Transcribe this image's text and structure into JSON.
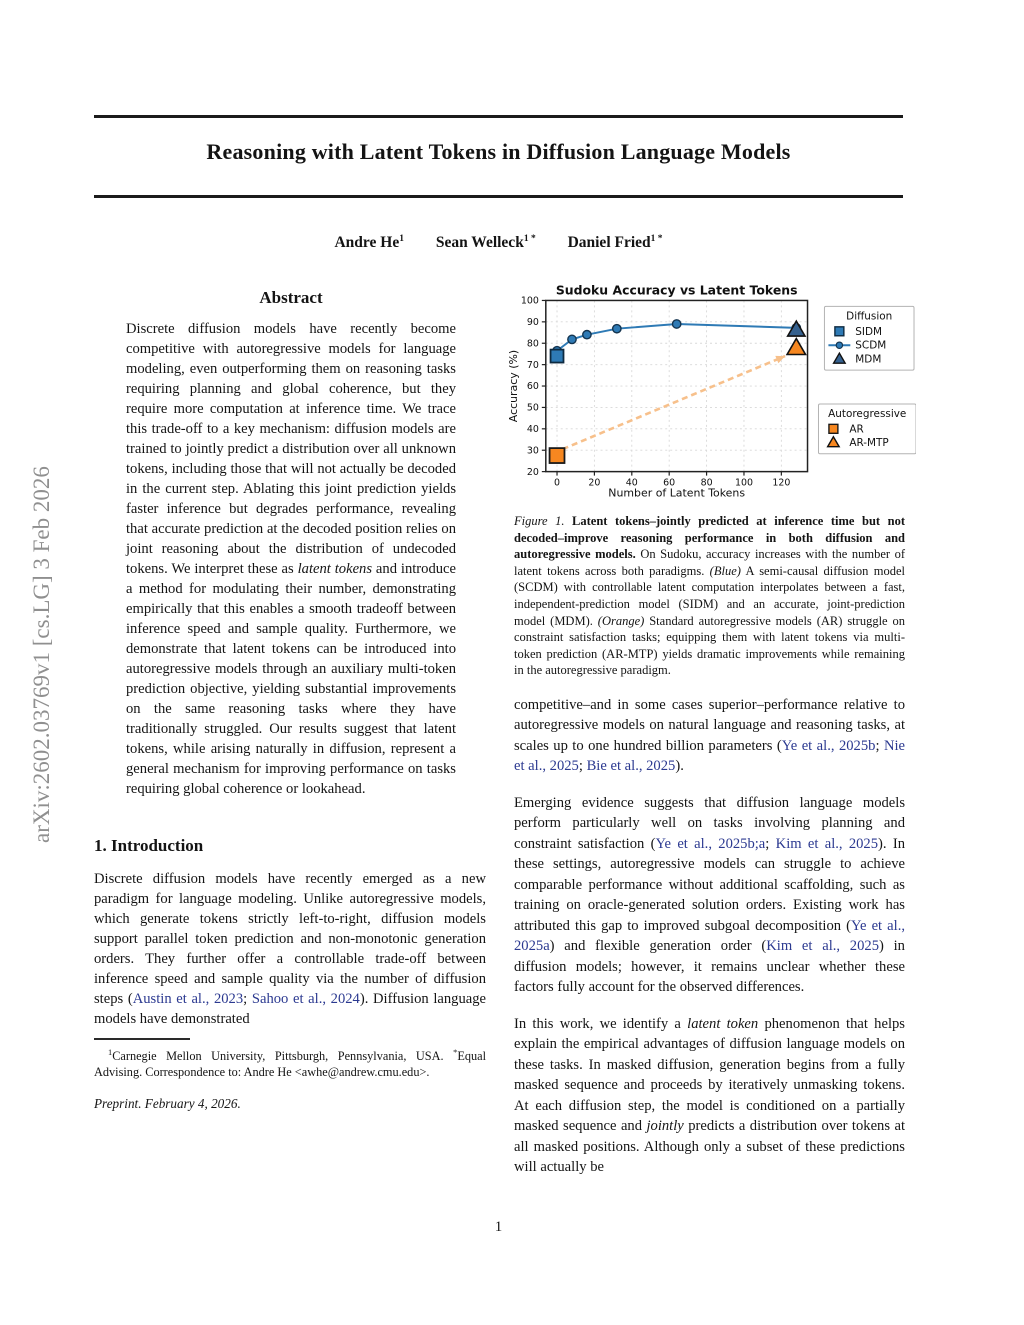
{
  "sidebar": {
    "arxiv_label": "arXiv:2602.03769v1  [cs.LG]  3 Feb 2026"
  },
  "header": {
    "title": "Reasoning with Latent Tokens in Diffusion Language Models",
    "authors": [
      {
        "name": "Andre He",
        "sup": "1"
      },
      {
        "name": "Sean Welleck",
        "sup": "1 *"
      },
      {
        "name": "Daniel Fried",
        "sup": "1 *"
      }
    ]
  },
  "abstract": {
    "heading": "Abstract",
    "text": [
      {
        "t": "Discrete diffusion models have recently become competitive with autoregressive models for language modeling, even outperforming them on reasoning tasks requiring planning and global coherence, but they require more computation at inference time. We trace this trade-off to a key mechanism: diffusion models are trained to jointly predict a distribution over all unknown tokens, including those that will not actually be decoded in the current step. Ablating this joint prediction yields faster inference but degrades performance, revealing that accurate prediction at the decoded position relies on joint reasoning about the distribution of undecoded tokens. We interpret these as "
      },
      {
        "t": "latent tokens",
        "s": "i"
      },
      {
        "t": " and introduce a method for modulating their number, demonstrating empirically that this enables a smooth tradeoff between inference speed and sample quality. Furthermore, we demonstrate that latent tokens can be introduced into autoregressive models through an auxiliary multi-token prediction objective, yielding substantial improvements on the same reasoning tasks where they have traditionally struggled. Our results suggest that latent tokens, while arising naturally in diffusion, represent a general mechanism for improving performance on tasks requiring global coherence or lookahead."
      }
    ]
  },
  "introduction": {
    "heading": "1. Introduction",
    "p1": [
      {
        "t": "Discrete diffusion models have recently emerged as a new paradigm for language modeling.  Unlike autoregressive models, which generate tokens strictly left-to-right, diffusion models support parallel token prediction and non-monotonic generation orders. They further offer a controllable trade-off between inference speed and sample quality via the number of diffusion steps ("
      },
      {
        "t": "Austin et al., 2023",
        "s": "c"
      },
      {
        "t": "; "
      },
      {
        "t": "Sahoo et al., 2024",
        "s": "c"
      },
      {
        "t": "). Diffusion language models have demonstrated"
      }
    ]
  },
  "footnote": {
    "text": [
      {
        "t": "1",
        "s": "sup"
      },
      {
        "t": "Carnegie Mellon University, Pittsburgh, Pennsylvania, USA. "
      },
      {
        "t": "*",
        "s": "sup"
      },
      {
        "t": "Equal Advising.  Correspondence to: Andre He <awhe@andrew.cmu.edu>."
      }
    ],
    "preprint": "Preprint. February 4, 2026."
  },
  "figure": {
    "caption": [
      {
        "t": "Figure 1.",
        "s": "i"
      },
      {
        "t": " Latent tokens–jointly predicted at inference time but not decoded–improve reasoning performance in both diffusion and autoregressive models.",
        "s": "b"
      },
      {
        "t": " On Sudoku, accuracy increases with the number of latent tokens across both paradigms. "
      },
      {
        "t": "(Blue)",
        "s": "i"
      },
      {
        "t": " A semi-causal diffusion model (SCDM) with controllable latent computation interpolates between a fast, independent-prediction model (SIDM) and an accurate, joint-prediction model (MDM). "
      },
      {
        "t": "(Orange)",
        "s": "i"
      },
      {
        "t": " Standard autoregressive models (AR) struggle on constraint satisfaction tasks; equipping them with latent tokens via multi-token prediction (AR-MTP) yields dramatic improvements while remaining in the autoregressive paradigm."
      }
    ]
  },
  "right_column": {
    "p1": [
      {
        "t": "competitive–and in some cases superior–performance relative to autoregressive models on natural language and reasoning tasks, at scales up to one hundred billion parameters ("
      },
      {
        "t": "Ye et al., 2025b",
        "s": "c"
      },
      {
        "t": "; "
      },
      {
        "t": "Nie et al., 2025",
        "s": "c"
      },
      {
        "t": "; "
      },
      {
        "t": "Bie et al., 2025",
        "s": "c"
      },
      {
        "t": ")."
      }
    ],
    "p2": [
      {
        "t": "Emerging evidence suggests that diffusion language models perform particularly well on tasks involving planning and constraint satisfaction ("
      },
      {
        "t": "Ye et al., 2025b;a",
        "s": "c"
      },
      {
        "t": "; "
      },
      {
        "t": "Kim et al., 2025",
        "s": "c"
      },
      {
        "t": "). In these settings, autoregressive models can struggle to achieve comparable performance without additional scaffolding, such as training on oracle-generated solution orders. Existing work has attributed this gap to improved subgoal decomposition ("
      },
      {
        "t": "Ye et al., 2025a",
        "s": "c"
      },
      {
        "t": ") and flexible generation order ("
      },
      {
        "t": "Kim et al., 2025",
        "s": "c"
      },
      {
        "t": ") in diffusion models; however, it remains unclear whether these factors fully account for the observed differences."
      }
    ],
    "p3": [
      {
        "t": "In this work, we identify a "
      },
      {
        "t": "latent token",
        "s": "i"
      },
      {
        "t": " phenomenon that helps explain the empirical advantages of diffusion language models on these tasks. In masked diffusion, generation begins from a fully masked sequence and proceeds by iteratively unmasking tokens. At each diffusion step, the model is conditioned on a partially masked sequence and "
      },
      {
        "t": "jointly",
        "s": "i"
      },
      {
        "t": " predicts a distribution over tokens at all masked positions. Although only a subset of these predictions will actually be"
      }
    ]
  },
  "page": {
    "page_number": "1"
  },
  "colors": {
    "blue": "#2e7ab5",
    "blue_edge": "#14344f",
    "navy_triangle": "#35618f",
    "orange": "#f68720",
    "arrow_orange": "#f7c08b",
    "cite_blue": "#2b3990",
    "grid_gray": "#d8d8d8"
  },
  "chart_data": {
    "type": "line",
    "title": "Sudoku Accuracy vs Latent Tokens",
    "xlabel": "Number of Latent Tokens",
    "ylabel": "Accuracy (%)",
    "xlim": [
      -6,
      134
    ],
    "ylim": [
      20,
      100
    ],
    "x_ticks": [
      0,
      20,
      40,
      60,
      80,
      100,
      120
    ],
    "y_ticks": [
      20,
      30,
      40,
      50,
      60,
      70,
      80,
      90,
      100
    ],
    "grid": true,
    "series": [
      {
        "name": "SCDM",
        "type": "line-circle",
        "color": "#2e7ab5",
        "edge": "#14344f",
        "points": [
          [
            0,
            76.5
          ],
          [
            8,
            81.8
          ],
          [
            16,
            84.0
          ],
          [
            32,
            86.8
          ],
          [
            64,
            89.0
          ],
          [
            128,
            87.2
          ]
        ]
      },
      {
        "name": "SIDM",
        "type": "square",
        "color": "#2e7ab5",
        "edge": "#0e2a40",
        "size": 13,
        "points": [
          [
            0,
            74.0
          ]
        ]
      },
      {
        "name": "MDM",
        "type": "triangle",
        "color": "#35618f",
        "edge": "#111111",
        "size": 15,
        "points": [
          [
            128,
            86.4
          ]
        ]
      },
      {
        "name": "AR",
        "type": "square",
        "color": "#f68720",
        "edge": "#1a1a1a",
        "size": 15,
        "points": [
          [
            0,
            27.5
          ]
        ]
      },
      {
        "name": "AR-MTP",
        "type": "triangle",
        "color": "#f68720",
        "edge": "#111111",
        "size": 16,
        "points": [
          [
            128,
            78.0
          ]
        ]
      }
    ],
    "arrow": {
      "from": [
        3,
        30.5
      ],
      "to": [
        122,
        74
      ],
      "color": "#f7c08b"
    },
    "legends": [
      {
        "title": "Diffusion",
        "x": 320,
        "y": 22,
        "w": 90,
        "h": 64,
        "items": [
          {
            "label": "SIDM",
            "marker": "square",
            "color": "#2e7ab5",
            "edge": "#0e2a40"
          },
          {
            "label": "SCDM",
            "marker": "line-circle",
            "color": "#2e7ab5",
            "edge": "#14344f"
          },
          {
            "label": "MDM",
            "marker": "triangle",
            "color": "#35618f",
            "edge": "#111111"
          }
        ]
      },
      {
        "title": "Autoregressive",
        "x": 314,
        "y": 120,
        "w": 98,
        "h": 50,
        "items": [
          {
            "label": "AR",
            "marker": "square",
            "color": "#f68720",
            "edge": "#1a1a1a"
          },
          {
            "label": "AR-MTP",
            "marker": "triangle",
            "color": "#f68720",
            "edge": "#111111"
          }
        ]
      }
    ]
  }
}
